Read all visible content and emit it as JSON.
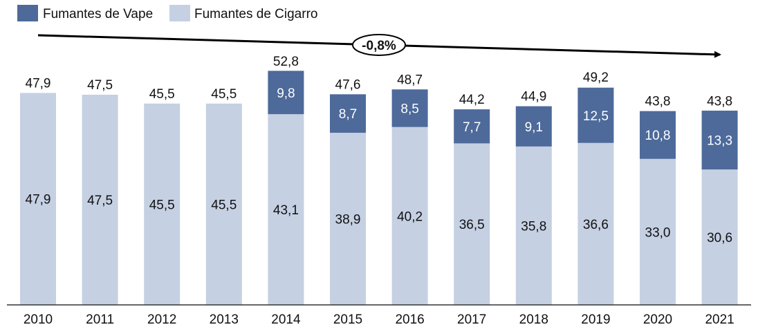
{
  "chart_data": {
    "type": "bar",
    "stacked": true,
    "categories": [
      "2010",
      "2011",
      "2012",
      "2013",
      "2014",
      "2015",
      "2016",
      "2017",
      "2018",
      "2019",
      "2020",
      "2021"
    ],
    "series": [
      {
        "name": "Fumantes de Cigarro",
        "color": "#c5d0e3",
        "values": [
          47.9,
          47.5,
          45.5,
          45.5,
          43.1,
          38.9,
          40.2,
          36.5,
          35.8,
          36.6,
          33.0,
          30.6
        ],
        "labels": [
          "47,9",
          "47,5",
          "45,5",
          "45,5",
          "43,1",
          "38,9",
          "40,2",
          "36,5",
          "35,8",
          "36,6",
          "33,0",
          "30,6"
        ]
      },
      {
        "name": "Fumantes de Vape",
        "color": "#4d6a9a",
        "values": [
          0,
          0,
          0,
          0,
          9.8,
          8.7,
          8.5,
          7.7,
          9.1,
          12.5,
          10.8,
          13.3
        ],
        "labels": [
          "",
          "",
          "",
          "",
          "9,8",
          "8,7",
          "8,5",
          "7,7",
          "9,1",
          "12,5",
          "10,8",
          "13,3"
        ]
      }
    ],
    "totals": [
      47.9,
      47.5,
      45.5,
      45.5,
      52.8,
      47.6,
      48.7,
      44.2,
      44.9,
      49.2,
      43.8,
      43.8
    ],
    "total_labels": [
      "47,9",
      "47,5",
      "45,5",
      "45,5",
      "52,8",
      "47,6",
      "48,7",
      "44,2",
      "44,9",
      "49,2",
      "43,8",
      "43,8"
    ],
    "legend": {
      "position": "top-left",
      "items": [
        {
          "label": "Fumantes de Vape",
          "color": "#4d6a9a"
        },
        {
          "label": "Fumantes de Cigarro",
          "color": "#c5d0e3"
        }
      ]
    },
    "annotation": {
      "text": "-0,8%",
      "type": "trend-arrow"
    },
    "ylim": [
      0,
      55
    ],
    "grid": false
  }
}
